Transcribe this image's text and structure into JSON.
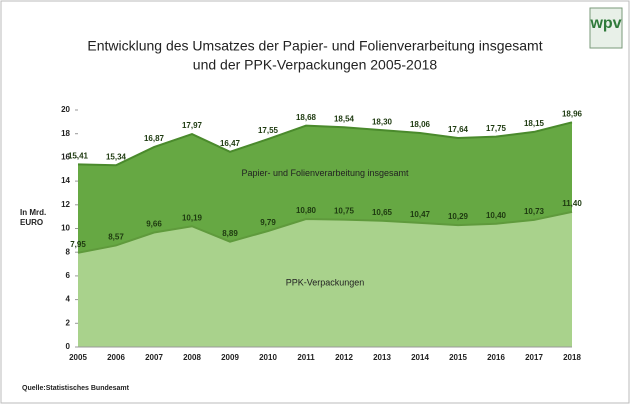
{
  "chart_data": {
    "type": "area",
    "title": [
      "Entwicklung des Umsatzes der Papier- und Folienverarbeitung insgesamt",
      "und der PPK-Verpackungen 2005-2018"
    ],
    "logo": "wpv",
    "ylabel": [
      "In Mrd.",
      "EURO"
    ],
    "source": "Quelle:Statistisches Bundesamt",
    "categories": [
      "2005",
      "2006",
      "2007",
      "2008",
      "2009",
      "2010",
      "2011",
      "2012",
      "2013",
      "2014",
      "2015",
      "2016",
      "2017",
      "2018"
    ],
    "series": [
      {
        "name": "Papier- und Folienverarbeitung insgesamt",
        "color": "#66a843",
        "line_color": "#4a8a2c",
        "values": [
          15.41,
          15.34,
          16.87,
          17.97,
          16.47,
          17.55,
          18.68,
          18.54,
          18.3,
          18.06,
          17.64,
          17.75,
          18.15,
          18.96
        ],
        "value_labels": [
          "15,41",
          "15,34",
          "16,87",
          "17,97",
          "16,47",
          "17,55",
          "18,68",
          "18,54",
          "18,30",
          "18,06",
          "17,64",
          "17,75",
          "18,15",
          "18,96"
        ]
      },
      {
        "name": "PPK-Verpackungen",
        "color": "#a9d28c",
        "line_color": "#5f9a3c",
        "values": [
          7.95,
          8.57,
          9.66,
          10.19,
          8.89,
          9.79,
          10.8,
          10.75,
          10.65,
          10.47,
          10.29,
          10.4,
          10.73,
          11.4
        ],
        "value_labels": [
          "7,95",
          "8,57",
          "9,66",
          "10,19",
          "8,89",
          "9,79",
          "10,80",
          "10,75",
          "10,65",
          "10,47",
          "10,29",
          "10,40",
          "10,73",
          "11,40"
        ]
      }
    ],
    "ylim": [
      0,
      20
    ],
    "yticks": [
      0,
      2,
      4,
      6,
      8,
      10,
      12,
      14,
      16,
      18,
      20
    ]
  }
}
